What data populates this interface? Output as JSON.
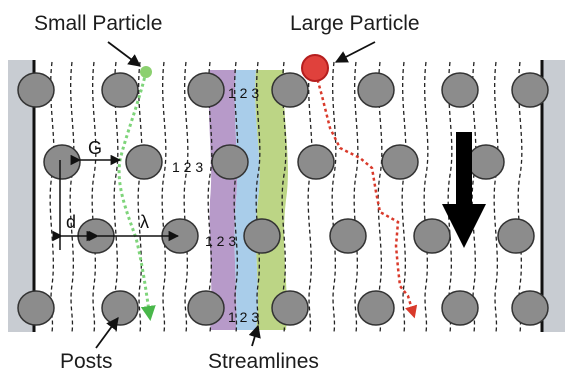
{
  "labels": {
    "small_particle": "Small Particle",
    "large_particle": "Large Particle",
    "posts": "Posts",
    "streamlines": "Streamlines",
    "gap": "G",
    "post_diameter": "d",
    "pitch": "λ"
  },
  "lane_labels": [
    {
      "text": "1 2 3"
    },
    {
      "text": "1 2 3"
    },
    {
      "text": "1 2 3"
    },
    {
      "text": "1 2 3"
    }
  ],
  "colors": {
    "post_fill": "#8c8c8c",
    "post_stroke": "#333333",
    "wall": "#c8ccd2",
    "lane_1": "#b79ac9",
    "lane_2": "#a9cdea",
    "lane_3": "#bcd585",
    "small_particle": "#8bd06f",
    "large_particle": "#e0413c",
    "small_path": "#7ed47a",
    "large_path": "#d93a2b",
    "flow_arrow": "#000000"
  },
  "icons": {
    "flow_direction": "down-arrow-icon"
  }
}
